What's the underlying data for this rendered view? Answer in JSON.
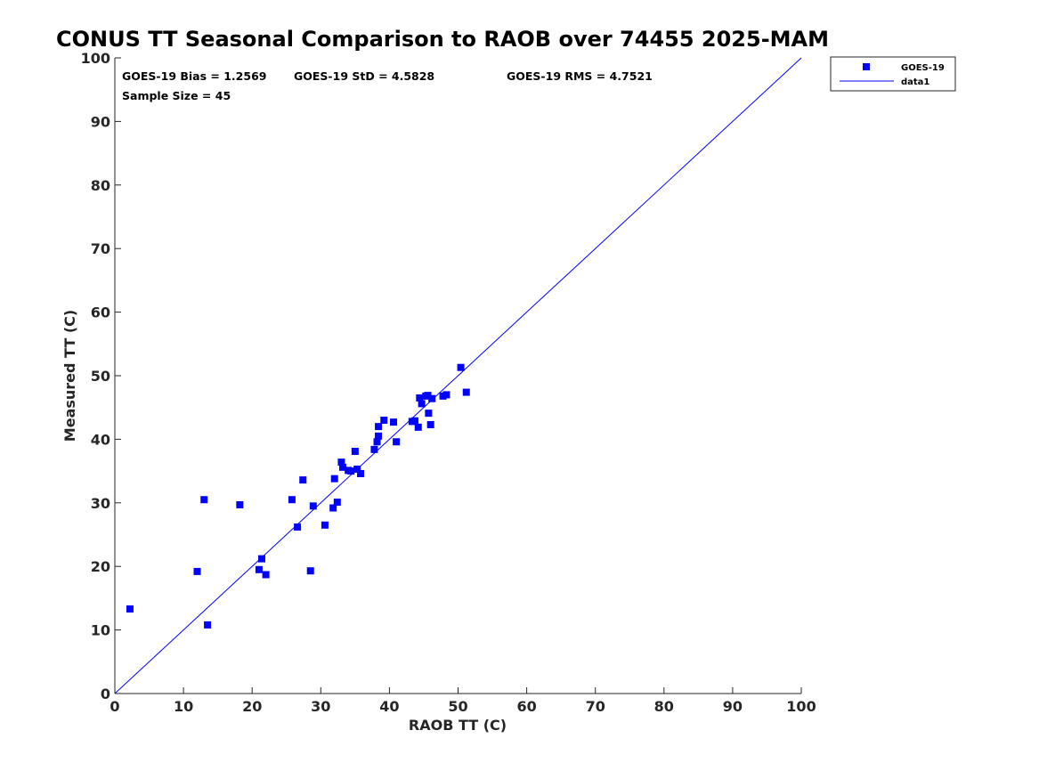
{
  "chart_data": {
    "type": "scatter",
    "title": "CONUS TT Seasonal Comparison to RAOB over 74455 2025-MAM",
    "xlabel": "RAOB TT (C)",
    "ylabel": "Measured TT (C)",
    "xlim": [
      0,
      100
    ],
    "ylim": [
      0,
      100
    ],
    "xticks": [
      0,
      10,
      20,
      30,
      40,
      50,
      60,
      70,
      80,
      90,
      100
    ],
    "yticks": [
      0,
      10,
      20,
      30,
      40,
      50,
      60,
      70,
      80,
      90,
      100
    ],
    "grid": false,
    "legend_position": "top-right",
    "stats": {
      "bias": "GOES-19 Bias = 1.2569",
      "std": "GOES-19 StD = 4.5828",
      "rms": "GOES-19 RMS = 4.7521",
      "sample": "Sample Size = 45"
    },
    "series": [
      {
        "name": "GOES-19",
        "style": "markers",
        "marker": "square",
        "color": "#0000ff",
        "points": [
          [
            2.2,
            13.3
          ],
          [
            12.0,
            19.2
          ],
          [
            13.0,
            30.5
          ],
          [
            13.5,
            10.8
          ],
          [
            18.2,
            29.7
          ],
          [
            21.0,
            19.5
          ],
          [
            21.4,
            21.2
          ],
          [
            22.0,
            18.7
          ],
          [
            25.8,
            30.5
          ],
          [
            26.6,
            26.2
          ],
          [
            27.4,
            33.6
          ],
          [
            28.5,
            19.3
          ],
          [
            28.9,
            29.5
          ],
          [
            30.6,
            26.5
          ],
          [
            31.8,
            29.2
          ],
          [
            32.0,
            33.8
          ],
          [
            32.4,
            30.1
          ],
          [
            33.0,
            36.4
          ],
          [
            33.2,
            35.6
          ],
          [
            34.4,
            35.0
          ],
          [
            35.0,
            38.1
          ],
          [
            35.3,
            35.3
          ],
          [
            35.8,
            34.6
          ],
          [
            37.8,
            38.4
          ],
          [
            38.2,
            39.6
          ],
          [
            38.4,
            40.5
          ],
          [
            38.4,
            42.0
          ],
          [
            39.2,
            43.0
          ],
          [
            40.6,
            42.7
          ],
          [
            41.0,
            39.6
          ],
          [
            43.3,
            42.8
          ],
          [
            43.7,
            42.9
          ],
          [
            44.2,
            41.9
          ],
          [
            44.4,
            46.5
          ],
          [
            44.7,
            45.6
          ],
          [
            45.3,
            46.8
          ],
          [
            45.6,
            46.9
          ],
          [
            45.7,
            44.1
          ],
          [
            46.0,
            42.3
          ],
          [
            46.2,
            46.4
          ],
          [
            47.8,
            46.8
          ],
          [
            48.3,
            47.0
          ],
          [
            50.4,
            51.3
          ],
          [
            51.2,
            47.4
          ],
          [
            34.0,
            35.1
          ]
        ]
      },
      {
        "name": "data1",
        "style": "line",
        "color": "#0000ff",
        "x": [
          0,
          100
        ],
        "y": [
          0,
          100
        ]
      }
    ]
  }
}
